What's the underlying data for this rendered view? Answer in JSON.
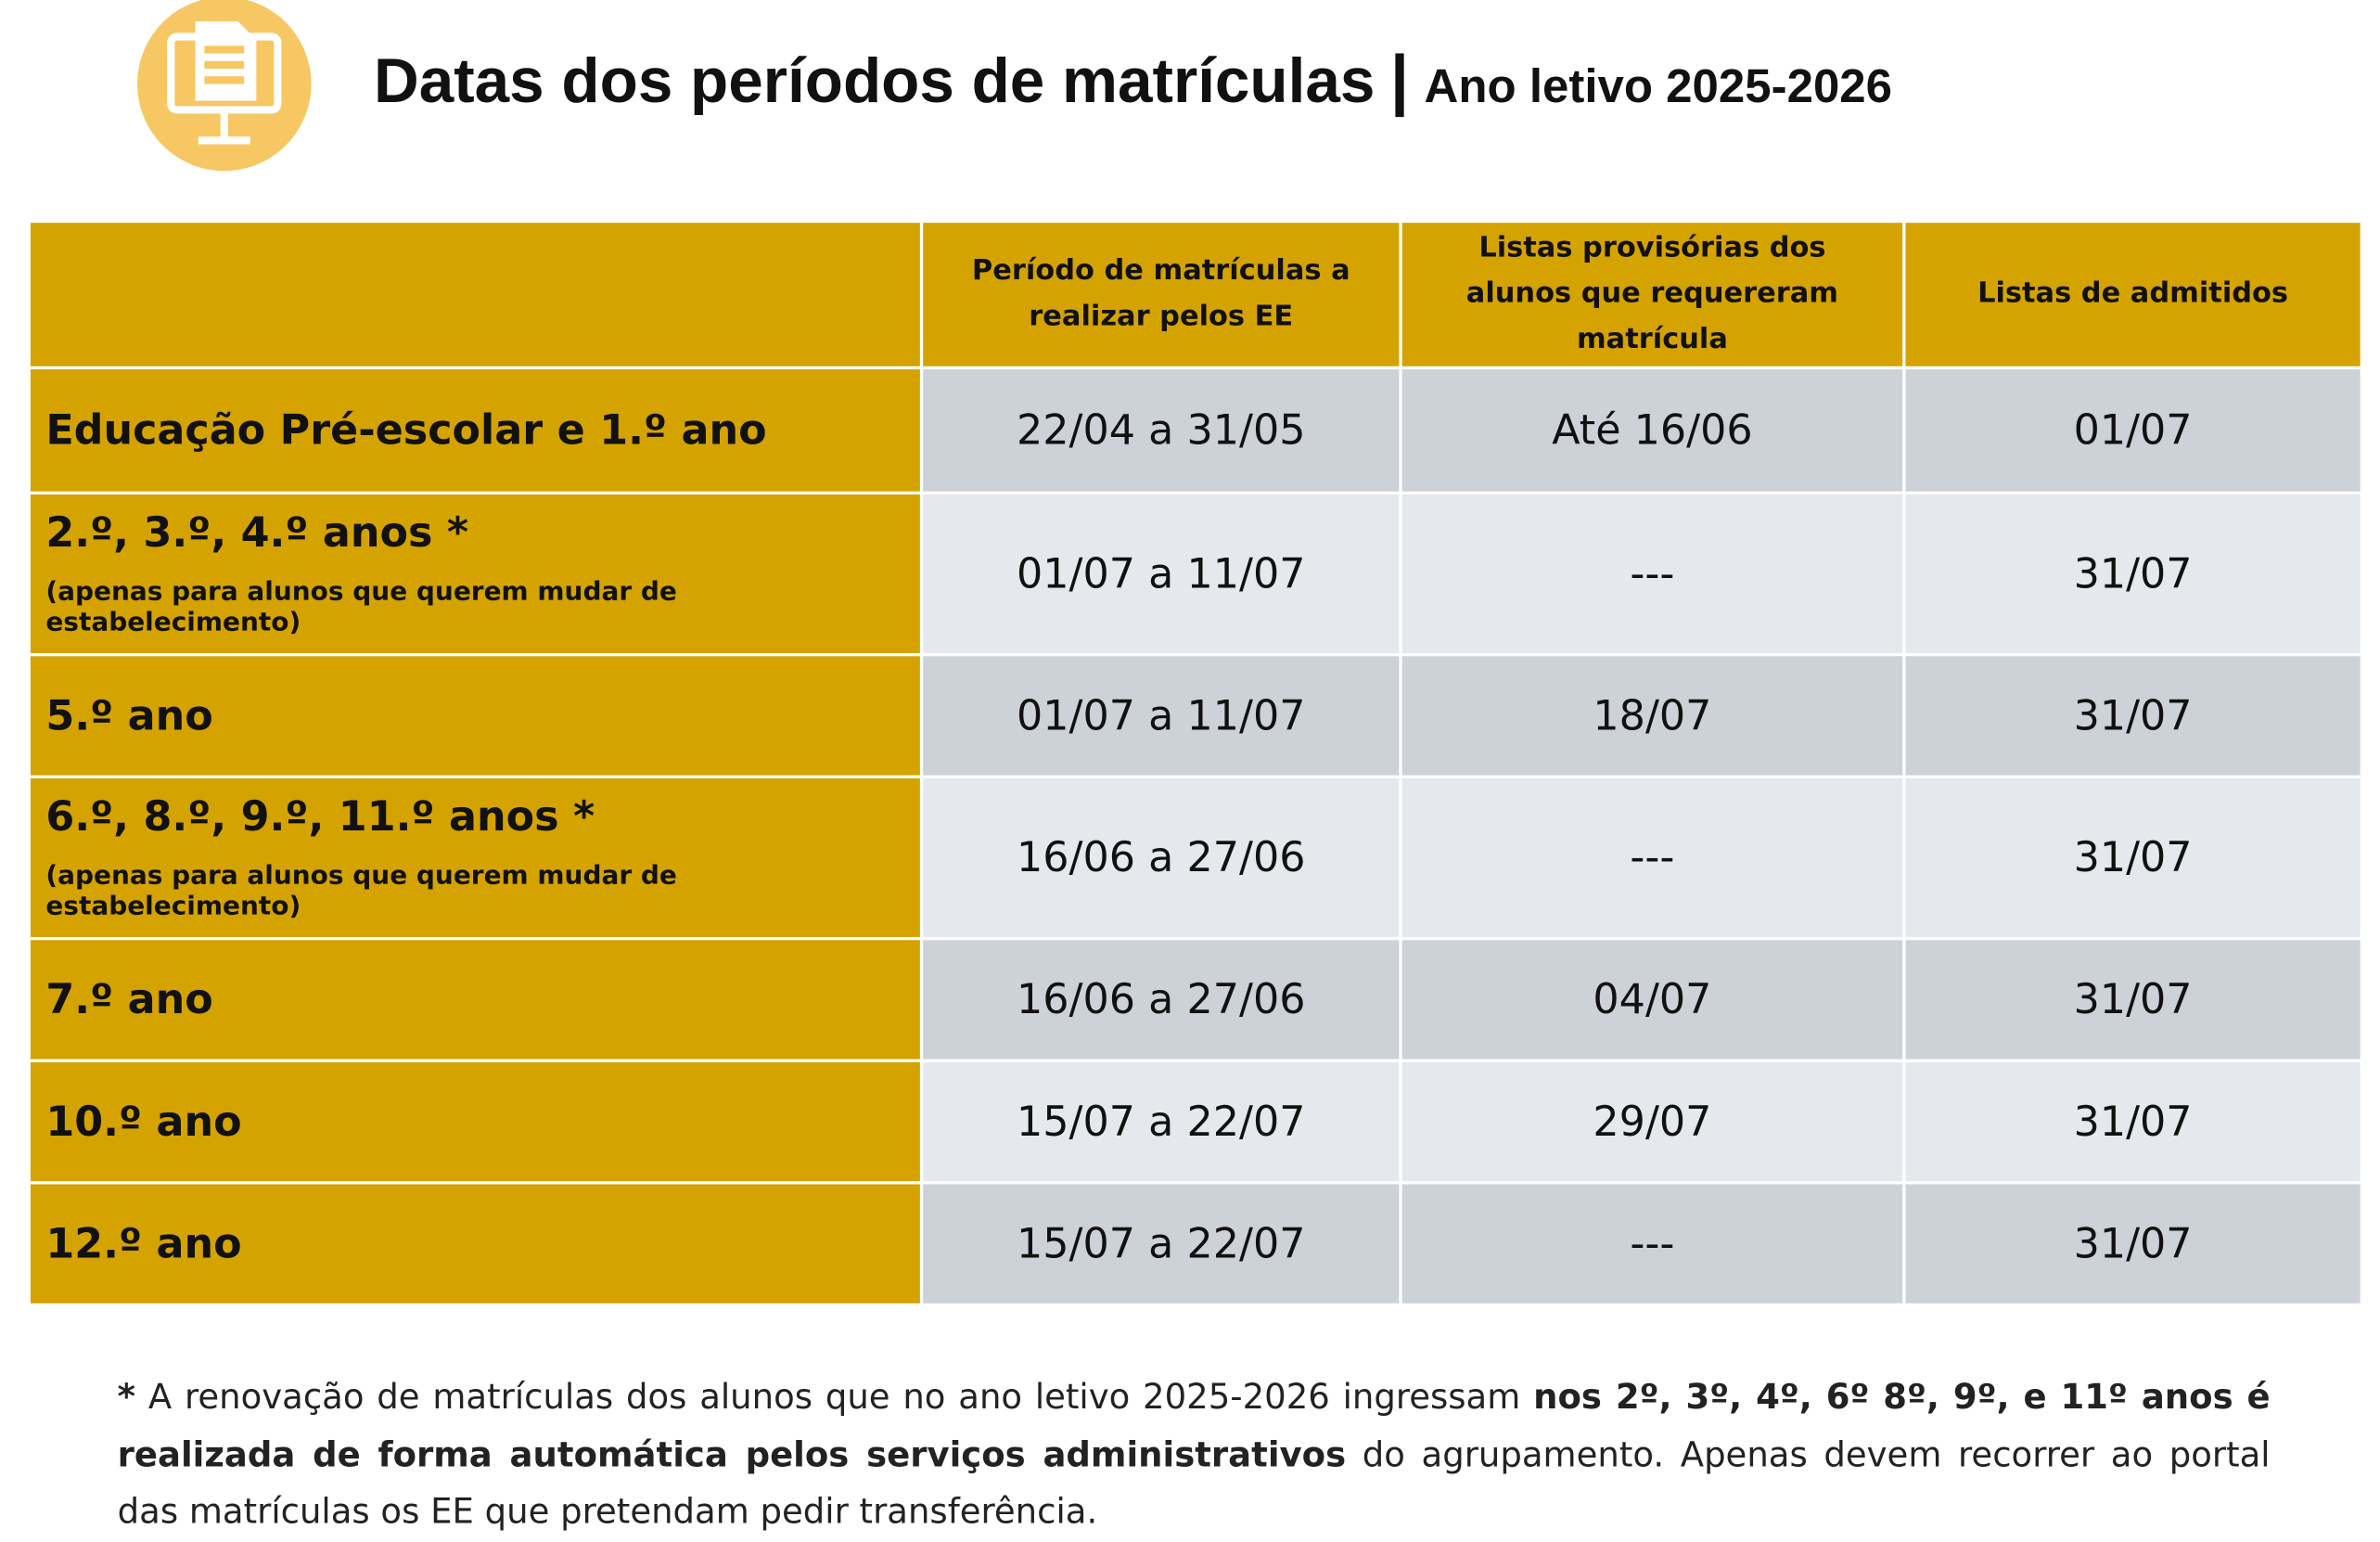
{
  "header": {
    "title": "Datas dos períodos de matrículas",
    "separator": "|",
    "subtitle": "Ano letivo 2025-2026"
  },
  "table": {
    "columns": [
      "Período de matrículas a realizar pelos EE",
      "Listas provisórias dos alunos que requereram matrícula",
      "Listas de admitidos"
    ],
    "rows": [
      {
        "label": "Educação Pré-escolar e 1.º ano",
        "cells": [
          "22/04 a 31/05",
          "Até 16/06",
          "01/07"
        ]
      },
      {
        "label": "2.º, 3.º, 4.º anos *",
        "note": "(apenas para alunos que querem mudar de estabelecimento)",
        "cells": [
          "01/07 a 11/07",
          "---",
          "31/07"
        ]
      },
      {
        "label": "5.º ano",
        "cells": [
          "01/07 a 11/07",
          "18/07",
          "31/07"
        ]
      },
      {
        "label": "6.º, 8.º, 9.º, 11.º anos *",
        "note": "(apenas para alunos que querem mudar de estabelecimento)",
        "cells": [
          "16/06 a 27/06",
          "---",
          "31/07"
        ]
      },
      {
        "label": "7.º ano",
        "cells": [
          "16/06 a 27/06",
          "04/07",
          "31/07"
        ]
      },
      {
        "label": "10.º ano",
        "cells": [
          "15/07 a 22/07",
          "29/07",
          "31/07"
        ]
      },
      {
        "label": "12.º ano",
        "cells": [
          "15/07 a 22/07",
          "---",
          "31/07"
        ]
      }
    ]
  },
  "footnote": {
    "segments": [
      {
        "text": "*",
        "bold": true
      },
      {
        "text": " A renovação de matrículas dos alunos que no ano letivo 2025-2026 ingressam ",
        "bold": false
      },
      {
        "text": "nos 2º, 3º, 4º, 6º 8º, 9º, e 11º anos é realizada de forma automática pelos serviços administrativos",
        "bold": true
      },
      {
        "text": " do agrupamento. Apenas devem recorrer ao portal das matrículas os EE que pretendam pedir transferência.",
        "bold": false
      }
    ]
  }
}
